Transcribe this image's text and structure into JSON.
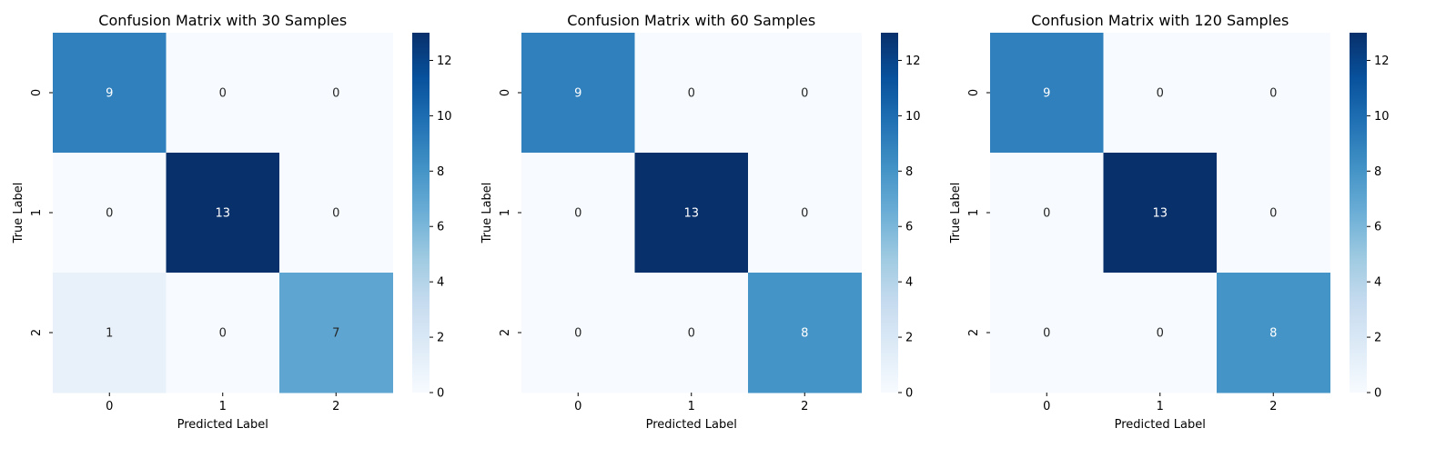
{
  "chart_data": [
    {
      "type": "heatmap",
      "title": "Confusion Matrix with 30 Samples",
      "xlabel": "Predicted Label",
      "ylabel": "True Label",
      "x_categories": [
        "0",
        "1",
        "2"
      ],
      "y_categories": [
        "0",
        "1",
        "2"
      ],
      "values": [
        [
          9,
          0,
          0
        ],
        [
          0,
          13,
          0
        ],
        [
          1,
          0,
          7
        ]
      ],
      "colorbar": {
        "min": 0,
        "max": 13,
        "ticks": [
          0,
          2,
          4,
          6,
          8,
          10,
          12
        ]
      },
      "colormap": "Blues"
    },
    {
      "type": "heatmap",
      "title": "Confusion Matrix with 60 Samples",
      "xlabel": "Predicted Label",
      "ylabel": "True Label",
      "x_categories": [
        "0",
        "1",
        "2"
      ],
      "y_categories": [
        "0",
        "1",
        "2"
      ],
      "values": [
        [
          9,
          0,
          0
        ],
        [
          0,
          13,
          0
        ],
        [
          0,
          0,
          8
        ]
      ],
      "colorbar": {
        "min": 0,
        "max": 13,
        "ticks": [
          0,
          2,
          4,
          6,
          8,
          10,
          12
        ]
      },
      "colormap": "Blues"
    },
    {
      "type": "heatmap",
      "title": "Confusion Matrix with 120 Samples",
      "xlabel": "Predicted Label",
      "ylabel": "True Label",
      "x_categories": [
        "0",
        "1",
        "2"
      ],
      "y_categories": [
        "0",
        "1",
        "2"
      ],
      "values": [
        [
          9,
          0,
          0
        ],
        [
          0,
          13,
          0
        ],
        [
          0,
          0,
          8
        ]
      ],
      "colorbar": {
        "min": 0,
        "max": 13,
        "ticks": [
          0,
          2,
          4,
          6,
          8,
          10,
          12
        ]
      },
      "colormap": "Blues"
    }
  ]
}
